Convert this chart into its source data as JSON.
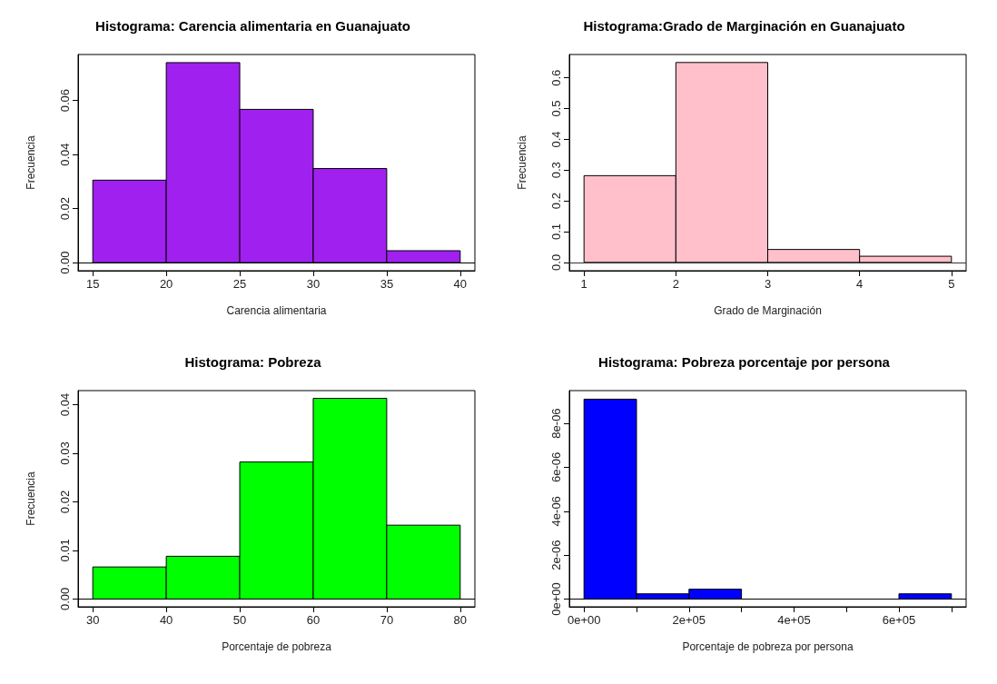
{
  "chart_data": [
    {
      "type": "histogram",
      "title": "Histograma: Carencia alimentaria en Guanajuato",
      "xlabel": "Carencia alimentaria",
      "ylabel": "Frecuencia",
      "color": "#a020f0",
      "bins": [
        15,
        20,
        25,
        30,
        35,
        40
      ],
      "values": [
        0.0305,
        0.074,
        0.0567,
        0.0348,
        0.0044
      ],
      "xlim": [
        14,
        41
      ],
      "xticks": [
        15,
        20,
        25,
        30,
        35,
        40
      ],
      "ylim": [
        -0.003,
        0.077
      ],
      "yticks": [
        {
          "value": 0,
          "label": "0.00"
        },
        {
          "value": 0.02,
          "label": "0.02"
        },
        {
          "value": 0.04,
          "label": "0.04"
        },
        {
          "value": 0.06,
          "label": "0.06"
        }
      ],
      "ref_lines": [
        {
          "axis": "y",
          "value": 0,
          "color": "#000000"
        }
      ],
      "grid": false
    },
    {
      "type": "histogram",
      "title": "Histograma:Grado de Marginación en Guanajuato",
      "xlabel": "Grado de Marginación",
      "ylabel": "Frecuencia",
      "color": "#ffc0cb",
      "bins": [
        1,
        2,
        3,
        4,
        5
      ],
      "values": [
        0.282,
        0.65,
        0.042,
        0.02
      ],
      "xlim": [
        0.84,
        5.16
      ],
      "xticks": [
        1,
        2,
        3,
        4,
        5
      ],
      "ylim": [
        -0.027,
        0.676
      ],
      "yticks": [
        {
          "value": 0,
          "label": "0.0"
        },
        0.1,
        0.2,
        0.3,
        0.4,
        0.5,
        0.6
      ],
      "ref_lines": [
        {
          "axis": "y",
          "value": 0,
          "color": "#333333"
        }
      ],
      "grid": false
    },
    {
      "type": "histogram",
      "title": "Histograma: Pobreza",
      "xlabel": "Porcentaje de pobreza",
      "ylabel": "Frecuencia",
      "color": "#00ff00",
      "bins": [
        30,
        40,
        50,
        60,
        70,
        80
      ],
      "values": [
        0.0066,
        0.0088,
        0.0282,
        0.0413,
        0.0152
      ],
      "xlim": [
        28,
        82
      ],
      "xticks": [
        30,
        40,
        50,
        60,
        70,
        80
      ],
      "ylim": [
        -0.0016,
        0.0429
      ],
      "yticks": [
        {
          "value": 0,
          "label": "0.00"
        },
        {
          "value": 0.01,
          "label": "0.01"
        },
        {
          "value": 0.02,
          "label": "0.02"
        },
        {
          "value": 0.03,
          "label": "0.03"
        },
        {
          "value": 0.04,
          "label": "0.04"
        }
      ],
      "ref_lines": [
        {
          "axis": "y",
          "value": 0,
          "color": "#000000"
        }
      ],
      "grid": false
    },
    {
      "type": "histogram",
      "title": "Histograma: Pobreza porcentaje por persona",
      "xlabel": "Porcentaje de pobreza por persona",
      "color": "#0000ff",
      "bins": [
        0,
        100000,
        200000,
        300000,
        400000,
        500000,
        600000,
        700000
      ],
      "values": [
        9.1e-06,
        2.4e-07,
        4.5e-07,
        0,
        0,
        0,
        2.4e-07
      ],
      "xlim": [
        -28000,
        728000
      ],
      "xticks": [
        {
          "value": 0,
          "label": "0e+00"
        },
        {
          "value": 100000,
          "label": null
        },
        {
          "value": 200000,
          "label": "2e+05"
        },
        {
          "value": 300000,
          "label": null
        },
        {
          "value": 400000,
          "label": "4e+05"
        },
        {
          "value": 500000,
          "label": null
        },
        {
          "value": 600000,
          "label": "6e+05"
        },
        {
          "value": 700000,
          "label": null
        }
      ],
      "ylim": [
        -3.5e-07,
        9.49e-06
      ],
      "yticks": [
        {
          "value": 0,
          "label": "0e+00"
        },
        {
          "value": 2e-06,
          "label": "2e-06"
        },
        {
          "value": 4e-06,
          "label": "4e-06"
        },
        {
          "value": 6e-06,
          "label": "6e-06"
        },
        {
          "value": 8e-06,
          "label": "8e-06"
        }
      ],
      "ref_lines": [
        {
          "axis": "y",
          "value": 0,
          "color": "#000000"
        }
      ],
      "grid": false
    }
  ]
}
